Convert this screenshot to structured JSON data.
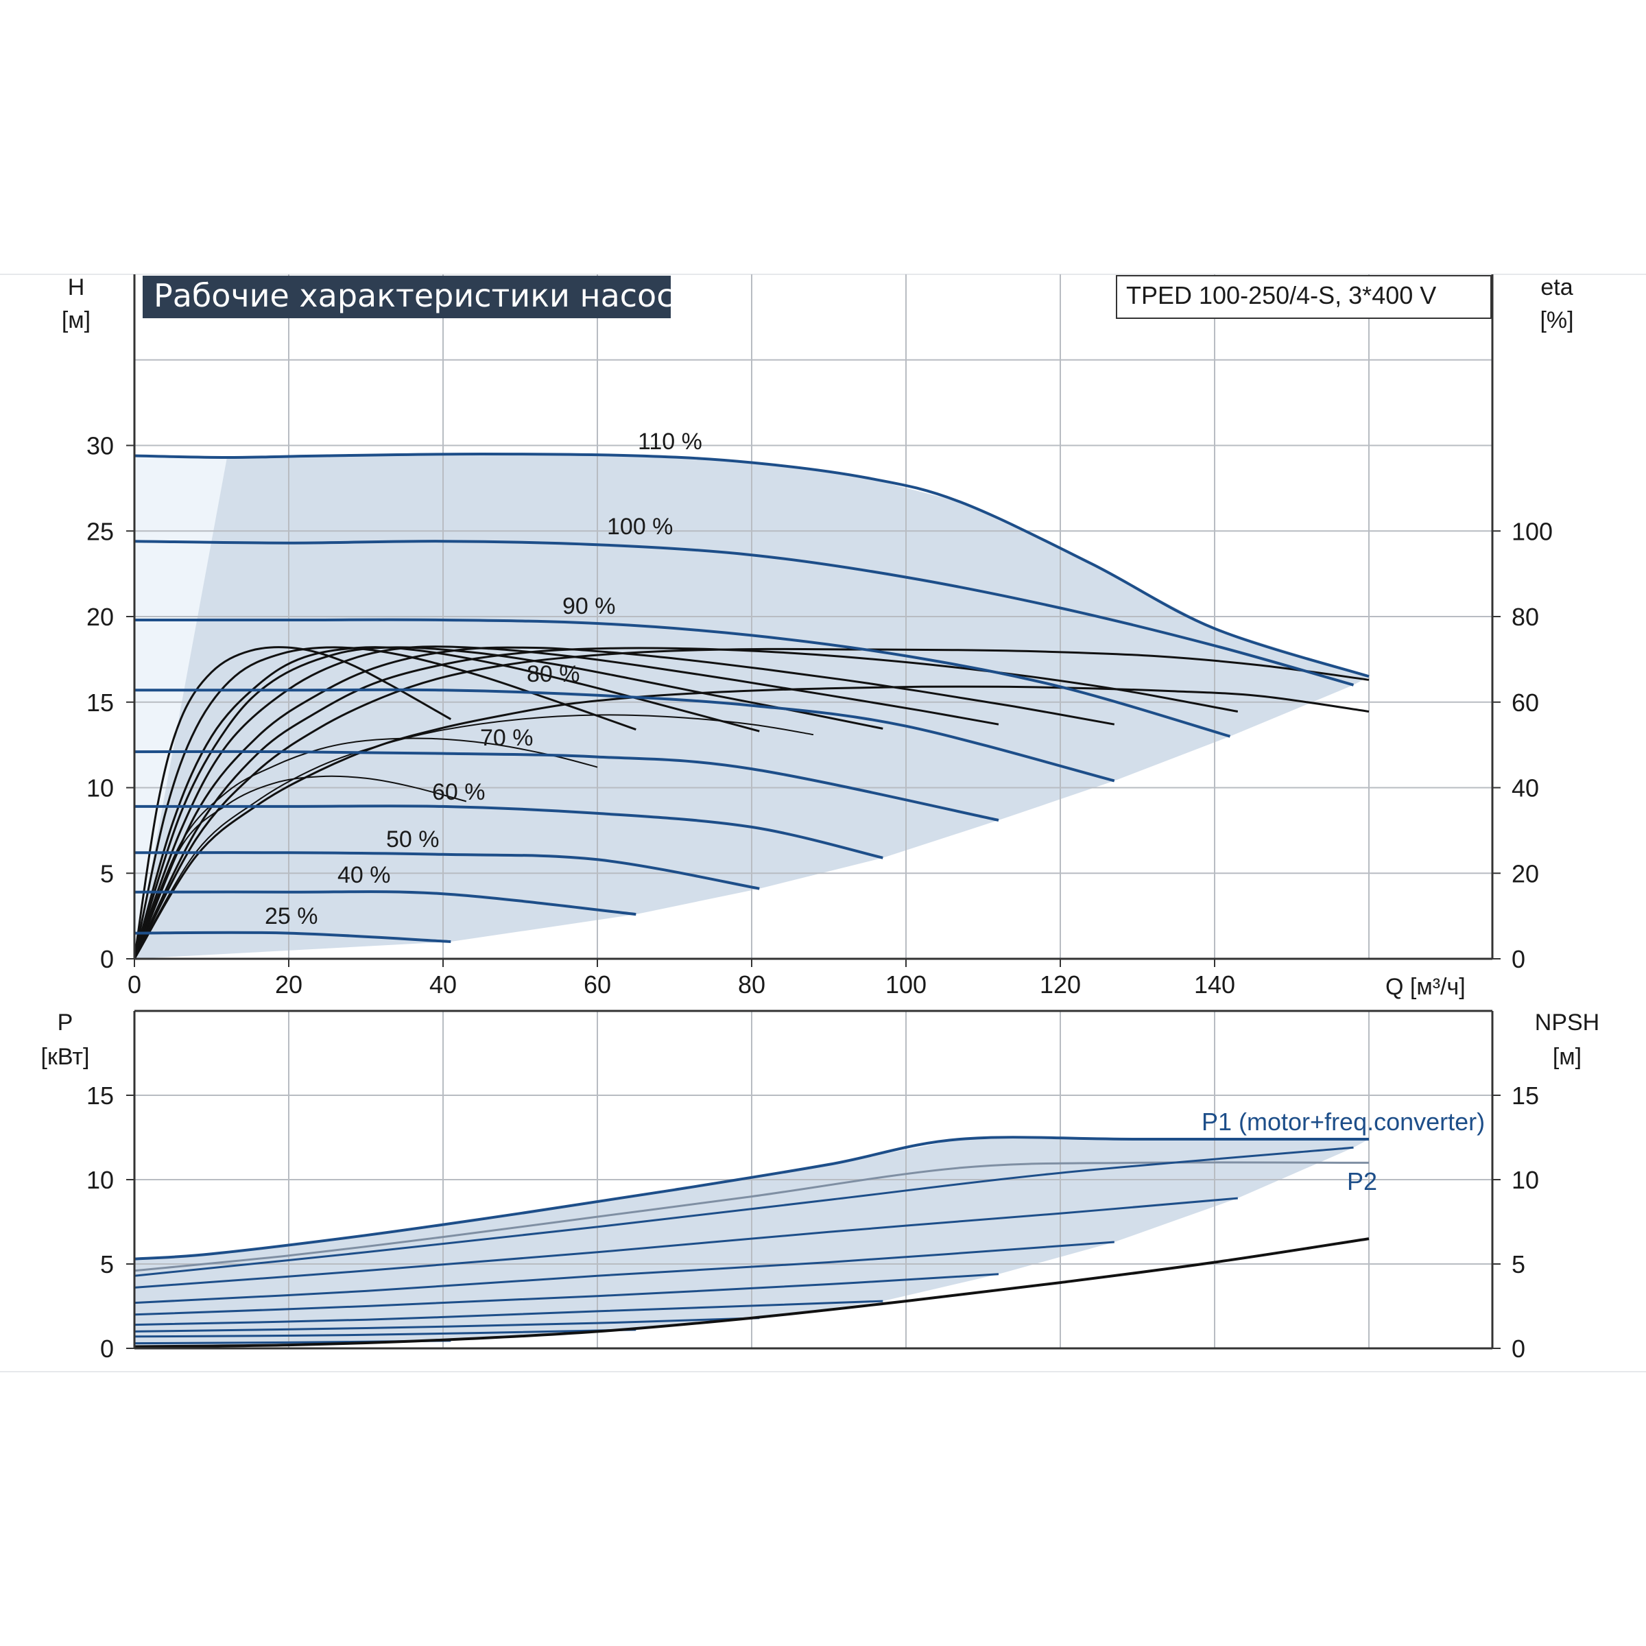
{
  "title": "Рабочие характеристики насоса",
  "model": "TPED 100-250/4-S, 3*400 V",
  "colors": {
    "curve_blue": "#1d4e89",
    "area_fill": "#d3deea",
    "area_light": "#eef4fa",
    "eta_line": "#111111",
    "grid": "#b8bcc2",
    "title_bg": "#2e3e52"
  },
  "chart_data": [
    {
      "type": "line",
      "title": "Рабочие характеристики насоса",
      "xlabel": "Q [м³/ч]",
      "ylabel_left": "H",
      "ylabel_left_unit": "[м]",
      "ylabel_right": "eta",
      "ylabel_right_unit": "[%]",
      "xlim": [
        0,
        176
      ],
      "ylim_left": [
        0,
        40
      ],
      "ylim_right": [
        0,
        160
      ],
      "x_ticks": [
        "0",
        "20",
        "40",
        "60",
        "80",
        "100",
        "120",
        "140"
      ],
      "y_ticks_left": [
        "0",
        "5",
        "10",
        "15",
        "20",
        "25",
        "30"
      ],
      "y_ticks_right": [
        "0",
        "20",
        "40",
        "60",
        "80",
        "100"
      ],
      "grid": true,
      "series": [
        {
          "name": "110 %",
          "x": [
            0,
            12,
            25,
            45,
            65,
            80,
            95,
            107,
            124,
            140,
            160
          ],
          "y": [
            29.4,
            29.3,
            29.4,
            29.5,
            29.4,
            29.0,
            28.1,
            26.7,
            23.1,
            19.3,
            16.5
          ]
        },
        {
          "name": "100 %",
          "x": [
            0,
            20,
            40,
            60,
            80,
            100,
            120,
            140,
            158
          ],
          "y": [
            24.4,
            24.3,
            24.4,
            24.2,
            23.6,
            22.3,
            20.5,
            18.3,
            16.0
          ]
        },
        {
          "name": "90 %",
          "x": [
            0,
            20,
            40,
            60,
            80,
            100,
            120,
            142
          ],
          "y": [
            19.8,
            19.8,
            19.8,
            19.6,
            18.9,
            17.7,
            15.9,
            13.0
          ]
        },
        {
          "name": "80 %",
          "x": [
            0,
            20,
            40,
            60,
            80,
            100,
            127
          ],
          "y": [
            15.7,
            15.7,
            15.7,
            15.4,
            14.8,
            13.6,
            10.4
          ]
        },
        {
          "name": "70 %",
          "x": [
            0,
            20,
            40,
            60,
            80,
            112
          ],
          "y": [
            12.1,
            12.1,
            12.0,
            11.8,
            11.1,
            8.1
          ]
        },
        {
          "name": "60 %",
          "x": [
            0,
            20,
            40,
            60,
            80,
            97
          ],
          "y": [
            8.9,
            8.9,
            8.9,
            8.5,
            7.7,
            5.9
          ]
        },
        {
          "name": "50 %",
          "x": [
            0,
            20,
            40,
            60,
            81
          ],
          "y": [
            6.2,
            6.2,
            6.1,
            5.8,
            4.1
          ]
        },
        {
          "name": "40 %",
          "x": [
            0,
            20,
            40,
            65
          ],
          "y": [
            3.9,
            3.9,
            3.8,
            2.6
          ]
        },
        {
          "name": "25 %",
          "x": [
            0,
            20,
            41
          ],
          "y": [
            1.5,
            1.5,
            1.0
          ]
        }
      ],
      "efficiency_curves": [
        {
          "x": [
            0,
            8,
            16,
            24,
            32,
            40,
            48,
            56,
            64,
            72,
            82,
            92,
            102,
            112,
            122,
            134,
            146,
            160
          ],
          "y": [
            0,
            24,
            36,
            44,
            50,
            54,
            57,
            59.5,
            61,
            62,
            62.8,
            63.3,
            63.6,
            63.6,
            63.3,
            62.6,
            61.4,
            57.8
          ]
        },
        {
          "x": [
            0,
            8,
            16,
            24,
            32,
            40,
            50,
            60,
            70,
            82,
            94,
            106,
            118,
            132,
            146,
            160
          ],
          "y": [
            0,
            28,
            44,
            54,
            61,
            65.8,
            69.2,
            71,
            72,
            72.4,
            72.3,
            72.2,
            71.8,
            70.8,
            68.6,
            65.2
          ]
        },
        {
          "x": [
            0,
            8,
            16,
            24,
            32,
            42,
            52,
            62,
            72,
            82,
            92,
            104,
            116,
            128,
            143
          ],
          "y": [
            0,
            30,
            48,
            58,
            65,
            69.5,
            71.8,
            72.6,
            72.5,
            71.8,
            70.6,
            68.6,
            66,
            62.8,
            57.8
          ]
        },
        {
          "x": [
            0,
            8,
            16,
            24,
            32,
            42,
            52,
            62,
            72,
            82,
            92,
            102,
            114,
            127
          ],
          "y": [
            0,
            34,
            52,
            62,
            68.5,
            72.2,
            72.7,
            71.6,
            69.8,
            67.6,
            65.2,
            62.5,
            59,
            54.8
          ]
        },
        {
          "x": [
            0,
            6,
            12,
            20,
            28,
            36,
            46,
            56,
            66,
            78,
            90,
            102,
            112
          ],
          "y": [
            0,
            30,
            50,
            63,
            70,
            72.8,
            72.5,
            70.8,
            68.4,
            65.1,
            61.6,
            58,
            54.8
          ]
        },
        {
          "x": [
            0,
            6,
            12,
            18,
            26,
            34,
            44,
            54,
            64,
            74,
            86,
            97
          ],
          "y": [
            0,
            34,
            54,
            65,
            71.2,
            72.8,
            71.6,
            69,
            65.6,
            62,
            57.8,
            53.8
          ]
        },
        {
          "x": [
            0,
            5,
            10,
            16,
            22,
            30,
            38,
            48,
            58,
            68,
            81
          ],
          "y": [
            0,
            32,
            52,
            64,
            70.5,
            72.8,
            71.8,
            68.5,
            64.2,
            59.5,
            53.2
          ]
        },
        {
          "x": [
            0,
            4,
            8,
            13,
            19,
            26,
            34,
            44,
            54,
            65
          ],
          "y": [
            0,
            34,
            54,
            66,
            71.3,
            72.8,
            71.2,
            66.6,
            60.6,
            53.6
          ]
        },
        {
          "x": [
            0,
            3,
            6,
            10,
            15,
            21,
            27,
            33,
            41
          ],
          "y": [
            0,
            36,
            56,
            67,
            72,
            72.6,
            69.6,
            64.2,
            56
          ]
        },
        {
          "x": [
            0,
            8,
            16,
            24,
            32,
            40,
            50,
            60,
            70,
            80,
            88
          ],
          "y": [
            0,
            25,
            37,
            45,
            50,
            53.5,
            56,
            57,
            56.5,
            54.8,
            52.4
          ]
        },
        {
          "x": [
            0,
            6,
            12,
            18,
            24,
            30,
            38,
            46,
            54,
            60
          ],
          "y": [
            0,
            27,
            39,
            45,
            49,
            51,
            51.5,
            50.3,
            47.6,
            44.8
          ]
        },
        {
          "x": [
            0,
            6,
            12,
            18,
            24,
            30,
            36,
            43
          ],
          "y": [
            0,
            26,
            36,
            41,
            42.6,
            42.2,
            40.2,
            36.8
          ]
        }
      ]
    },
    {
      "type": "line",
      "ylabel_left": "P",
      "ylabel_left_unit": "[кВт]",
      "ylabel_right": "NPSH",
      "ylabel_right_unit": "[м]",
      "xlim": [
        0,
        176
      ],
      "ylim_left": [
        0,
        20
      ],
      "ylim_right": [
        0,
        20
      ],
      "y_ticks_left": [
        "0",
        "5",
        "10",
        "15"
      ],
      "y_ticks_right": [
        "0",
        "5",
        "10",
        "15"
      ],
      "grid": true,
      "series": [
        {
          "name": "P1 (motor+freq.converter)",
          "x": [
            0,
            10,
            30,
            50,
            70,
            90,
            107,
            130,
            160
          ],
          "y": [
            5.3,
            5.6,
            6.7,
            8.0,
            9.4,
            10.9,
            12.4,
            12.4,
            12.4
          ]
        },
        {
          "name": "P2",
          "x": [
            0,
            20,
            40,
            60,
            80,
            107,
            130,
            160
          ],
          "y": [
            4.6,
            5.5,
            6.6,
            7.8,
            9.0,
            10.7,
            11.0,
            11.0
          ]
        },
        {
          "name": "",
          "x": [
            0,
            30,
            60,
            90,
            120,
            158
          ],
          "y": [
            4.3,
            5.7,
            7.2,
            8.8,
            10.4,
            11.9
          ]
        },
        {
          "name": "",
          "x": [
            0,
            30,
            60,
            90,
            120,
            143
          ],
          "y": [
            3.6,
            4.6,
            5.7,
            6.9,
            8.0,
            8.9
          ]
        },
        {
          "name": "",
          "x": [
            0,
            30,
            60,
            90,
            127
          ],
          "y": [
            2.7,
            3.4,
            4.3,
            5.1,
            6.3
          ]
        },
        {
          "name": "",
          "x": [
            0,
            30,
            60,
            90,
            112
          ],
          "y": [
            2.0,
            2.5,
            3.1,
            3.8,
            4.4
          ]
        },
        {
          "name": "",
          "x": [
            0,
            30,
            60,
            97
          ],
          "y": [
            1.4,
            1.7,
            2.2,
            2.8
          ]
        },
        {
          "name": "",
          "x": [
            0,
            30,
            60,
            81
          ],
          "y": [
            1.0,
            1.2,
            1.5,
            1.8
          ]
        },
        {
          "name": "",
          "x": [
            0,
            30,
            65
          ],
          "y": [
            0.7,
            0.8,
            1.1
          ]
        },
        {
          "name": "",
          "x": [
            0,
            20,
            41
          ],
          "y": [
            0.3,
            0.35,
            0.45
          ]
        }
      ],
      "npsh": {
        "x": [
          0,
          20,
          40,
          60,
          80,
          100,
          120,
          140,
          160
        ],
        "y": [
          0.1,
          0.2,
          0.5,
          1.0,
          1.8,
          2.8,
          3.9,
          5.1,
          6.5
        ]
      }
    }
  ]
}
